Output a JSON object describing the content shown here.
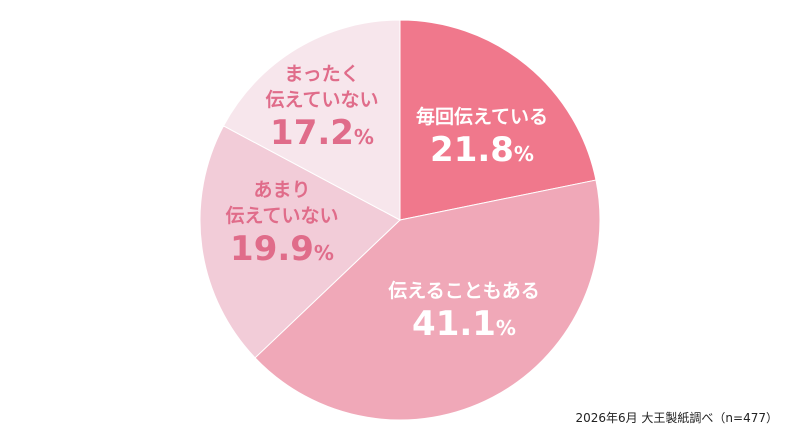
{
  "chart_data": {
    "type": "pie",
    "slices": [
      {
        "label": "毎回伝えている",
        "value": 21.8,
        "display": "21.8",
        "unit": "%",
        "color": "#f0788c",
        "text_color": "#ffffff"
      },
      {
        "label": "伝えることもある",
        "value": 41.1,
        "display": "41.1",
        "unit": "%",
        "color": "#f0a8b8",
        "text_color": "#ffffff"
      },
      {
        "label": "あまり\n伝えていない",
        "value": 19.9,
        "display": "19.9",
        "unit": "%",
        "color": "#f2ccd8",
        "text_color": "#e06c8a"
      },
      {
        "label": "まったく\n伝えていない",
        "value": 17.2,
        "display": "17.2",
        "unit": "%",
        "color": "#f7e6ec",
        "text_color": "#e06c8a"
      }
    ],
    "start": "12 o'clock",
    "direction": "clockwise",
    "legend": "none"
  },
  "source": "2026年6月 大王製紙調べ（n=477）"
}
